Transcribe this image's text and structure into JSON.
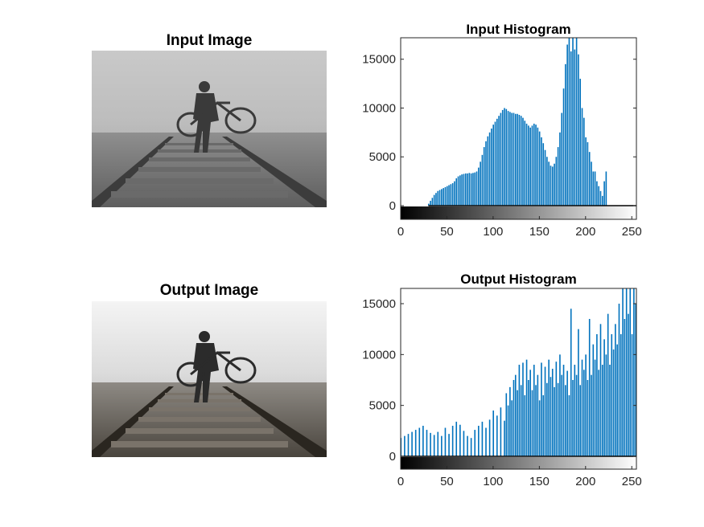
{
  "figure": {
    "panels": [
      {
        "title": "Input Image"
      },
      {
        "title": "Output Image"
      }
    ]
  },
  "colors": {
    "bar": "#0072BD",
    "axis": "#262626",
    "background": "#ffffff"
  },
  "chart_data": [
    {
      "type": "bar",
      "title": "Input Histogram",
      "xlabel": "",
      "ylabel": "",
      "xlim": [
        0,
        255
      ],
      "ylim": [
        -1200,
        17200
      ],
      "xticks": [
        0,
        50,
        100,
        150,
        200,
        250
      ],
      "yticks": [
        0,
        5000,
        10000,
        15000
      ],
      "grid": false,
      "colorbar": "grayscale 0-255 along x-axis",
      "x": [
        30,
        32,
        34,
        36,
        38,
        40,
        42,
        44,
        46,
        48,
        50,
        52,
        54,
        56,
        58,
        60,
        62,
        64,
        66,
        68,
        70,
        72,
        74,
        76,
        78,
        80,
        82,
        84,
        86,
        88,
        90,
        92,
        94,
        96,
        98,
        100,
        102,
        104,
        106,
        108,
        110,
        112,
        114,
        116,
        118,
        120,
        122,
        124,
        126,
        128,
        130,
        132,
        134,
        136,
        138,
        140,
        142,
        144,
        146,
        148,
        150,
        152,
        154,
        156,
        158,
        160,
        162,
        164,
        166,
        168,
        170,
        172,
        174,
        176,
        178,
        180,
        182,
        184,
        186,
        188,
        190,
        192,
        194,
        196,
        198,
        200,
        202,
        204,
        206,
        208,
        210,
        212,
        214,
        216,
        218,
        220,
        222
      ],
      "values": [
        200,
        500,
        800,
        1100,
        1300,
        1500,
        1600,
        1700,
        1800,
        1900,
        2000,
        2100,
        2200,
        2300,
        2500,
        2800,
        3000,
        3100,
        3200,
        3250,
        3300,
        3300,
        3350,
        3300,
        3350,
        3400,
        3500,
        3900,
        4500,
        5200,
        6000,
        6600,
        7100,
        7500,
        7900,
        8300,
        8600,
        8900,
        9200,
        9500,
        9800,
        10000,
        9900,
        9700,
        9600,
        9500,
        9500,
        9400,
        9400,
        9300,
        9200,
        9000,
        8700,
        8400,
        8200,
        8000,
        8200,
        8400,
        8300,
        8000,
        7600,
        7000,
        6400,
        5700,
        5000,
        4500,
        4100,
        4000,
        4300,
        5000,
        6000,
        7500,
        9500,
        12000,
        14500,
        16500,
        17200,
        15800,
        17200,
        16000,
        17200,
        15500,
        13000,
        10000,
        9000,
        7000,
        6500,
        5500,
        4500,
        3500,
        3500,
        2500,
        2000,
        1500,
        1000,
        2500,
        3500
      ]
    },
    {
      "type": "bar",
      "title": "Output Histogram",
      "xlabel": "",
      "ylabel": "",
      "xlim": [
        0,
        255
      ],
      "ylim": [
        -1200,
        16500
      ],
      "xticks": [
        0,
        50,
        100,
        150,
        200,
        250
      ],
      "yticks": [
        0,
        5000,
        10000,
        15000
      ],
      "grid": false,
      "colorbar": "grayscale 0-255 along x-axis",
      "x": [
        0,
        4,
        8,
        12,
        16,
        20,
        24,
        28,
        32,
        36,
        40,
        44,
        48,
        52,
        56,
        60,
        64,
        68,
        72,
        76,
        80,
        84,
        88,
        92,
        96,
        100,
        104,
        108,
        112,
        114,
        116,
        118,
        120,
        122,
        124,
        126,
        128,
        130,
        132,
        134,
        136,
        138,
        140,
        142,
        144,
        146,
        148,
        150,
        152,
        154,
        156,
        158,
        160,
        162,
        164,
        166,
        168,
        170,
        172,
        174,
        176,
        178,
        180,
        182,
        184,
        186,
        188,
        190,
        192,
        194,
        196,
        198,
        200,
        202,
        204,
        206,
        208,
        210,
        212,
        214,
        216,
        218,
        220,
        222,
        224,
        226,
        228,
        230,
        232,
        234,
        236,
        238,
        240,
        242,
        244,
        246,
        248,
        250,
        252,
        254
      ],
      "values": [
        1800,
        2000,
        2200,
        2400,
        2600,
        2800,
        3000,
        2600,
        2300,
        2100,
        2400,
        2000,
        2800,
        2200,
        3000,
        3400,
        3100,
        2500,
        2000,
        1800,
        2600,
        3000,
        3400,
        2800,
        3600,
        4500,
        4000,
        4800,
        3500,
        6200,
        5000,
        6800,
        5500,
        7500,
        8000,
        6500,
        9000,
        7000,
        9200,
        6000,
        9500,
        7500,
        8500,
        6500,
        9000,
        7000,
        8000,
        5500,
        9200,
        6000,
        8800,
        7200,
        9500,
        7800,
        8600,
        6800,
        9300,
        7200,
        10000,
        8000,
        9000,
        7000,
        8400,
        6000,
        14500,
        7500,
        9000,
        8000,
        12500,
        7000,
        9500,
        8500,
        10000,
        7500,
        13500,
        8000,
        11000,
        9500,
        12000,
        8500,
        13000,
        9000,
        11500,
        10000,
        14000,
        9000,
        12000,
        10500,
        13000,
        11000,
        15000,
        12000,
        16500,
        13500,
        16500,
        14000,
        16500,
        12000,
        16500,
        15000
      ]
    }
  ]
}
